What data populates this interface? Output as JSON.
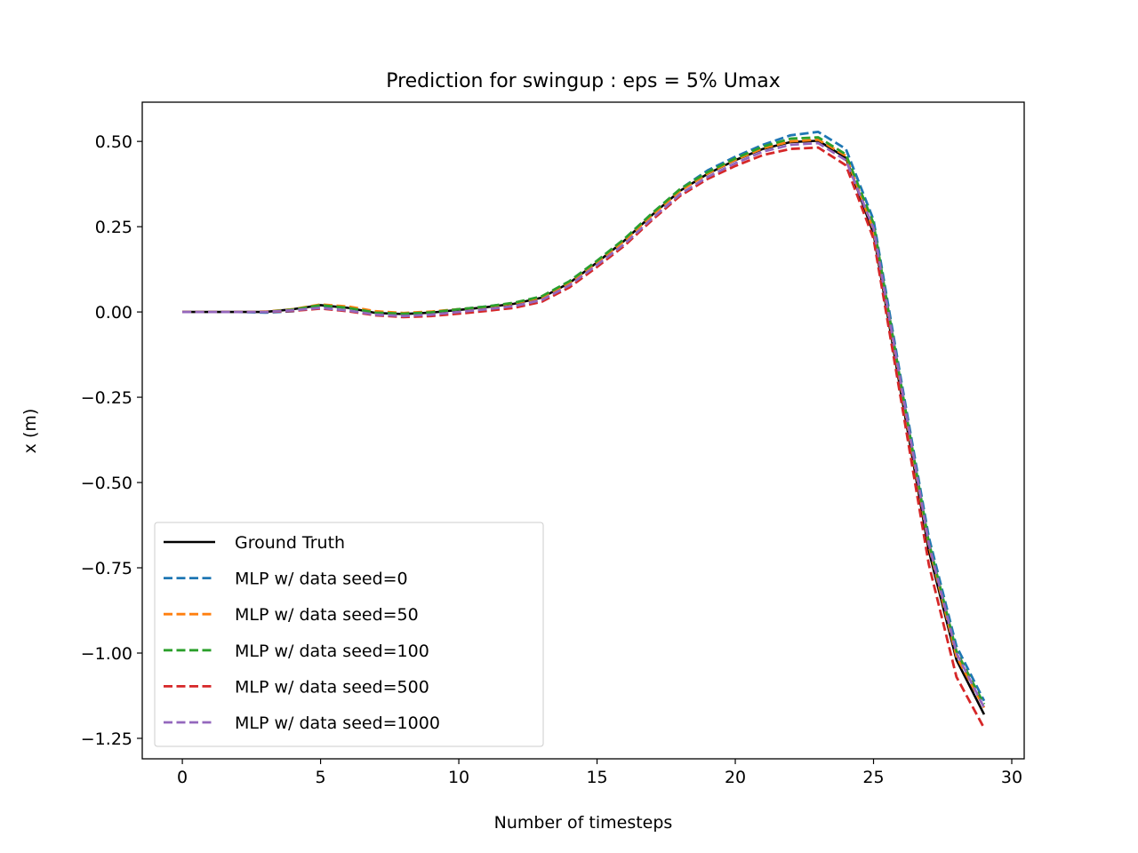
{
  "chart_data": {
    "type": "line",
    "title": "Prediction for swingup : eps = 5% Umax",
    "xlabel": "Number of timesteps",
    "ylabel": "x (m)",
    "xlim": [
      -1.45,
      30.45
    ],
    "ylim": [
      -1.31,
      0.615
    ],
    "xticks": [
      0,
      5,
      10,
      15,
      20,
      25,
      30
    ],
    "xtick_labels": [
      "0",
      "5",
      "10",
      "15",
      "20",
      "25",
      "30"
    ],
    "yticks": [
      0.5,
      0.25,
      0.0,
      -0.25,
      -0.5,
      -0.75,
      -1.0,
      -1.25
    ],
    "ytick_labels": [
      "0.50",
      "0.25",
      "0.00",
      "−0.25",
      "−0.50",
      "−0.75",
      "−1.00",
      "−1.25"
    ],
    "grid": false,
    "legend_position": "lower-left",
    "x": [
      0,
      1,
      2,
      3,
      4,
      5,
      6,
      7,
      8,
      9,
      10,
      11,
      12,
      13,
      14,
      15,
      16,
      17,
      18,
      19,
      20,
      21,
      22,
      23,
      24,
      25,
      26,
      27,
      28,
      29
    ],
    "series": [
      {
        "name": "Ground Truth",
        "color": "#000000",
        "dashed": false,
        "values": [
          0,
          0,
          0,
          0,
          0.008,
          0.02,
          0.012,
          -0.003,
          -0.006,
          -0.002,
          0.006,
          0.014,
          0.024,
          0.042,
          0.085,
          0.145,
          0.21,
          0.285,
          0.355,
          0.405,
          0.445,
          0.478,
          0.498,
          0.502,
          0.452,
          0.23,
          -0.24,
          -0.7,
          -1.02,
          -1.18
        ]
      },
      {
        "name": "MLP w/ data seed=0",
        "color": "#1f77b4",
        "dashed": true,
        "values": [
          0,
          0,
          0,
          -0.002,
          0.002,
          0.018,
          0.012,
          -0.002,
          -0.005,
          0,
          0.008,
          0.016,
          0.026,
          0.045,
          0.09,
          0.15,
          0.215,
          0.29,
          0.36,
          0.415,
          0.455,
          0.49,
          0.518,
          0.528,
          0.478,
          0.27,
          -0.2,
          -0.66,
          -0.98,
          -1.14
        ]
      },
      {
        "name": "MLP w/ data seed=50",
        "color": "#ff7f0e",
        "dashed": true,
        "values": [
          0,
          0,
          0,
          0.001,
          0.008,
          0.022,
          0.016,
          0.002,
          -0.003,
          0.001,
          0.008,
          0.015,
          0.025,
          0.043,
          0.086,
          0.146,
          0.21,
          0.285,
          0.355,
          0.406,
          0.446,
          0.48,
          0.5,
          0.505,
          0.458,
          0.24,
          -0.225,
          -0.685,
          -1.01,
          -1.16
        ]
      },
      {
        "name": "MLP w/ data seed=100",
        "color": "#2ca02c",
        "dashed": true,
        "values": [
          0,
          0,
          0,
          0,
          0.007,
          0.02,
          0.012,
          -0.002,
          -0.005,
          -0.001,
          0.008,
          0.016,
          0.027,
          0.046,
          0.09,
          0.15,
          0.215,
          0.29,
          0.36,
          0.41,
          0.45,
          0.485,
          0.508,
          0.512,
          0.462,
          0.26,
          -0.215,
          -0.675,
          -0.995,
          -1.15
        ]
      },
      {
        "name": "MLP w/ data seed=500",
        "color": "#d62728",
        "dashed": true,
        "values": [
          0,
          0,
          0,
          0,
          0.003,
          0.01,
          0.002,
          -0.01,
          -0.015,
          -0.012,
          -0.005,
          0.003,
          0.012,
          0.03,
          0.072,
          0.132,
          0.195,
          0.27,
          0.34,
          0.39,
          0.428,
          0.46,
          0.478,
          0.482,
          0.43,
          0.215,
          -0.26,
          -0.74,
          -1.07,
          -1.22
        ]
      },
      {
        "name": "MLP w/ data seed=1000",
        "color": "#9467bd",
        "dashed": true,
        "values": [
          0,
          0,
          0,
          0,
          0.005,
          0.012,
          0.004,
          -0.008,
          -0.012,
          -0.008,
          0,
          0.008,
          0.017,
          0.035,
          0.078,
          0.138,
          0.2,
          0.275,
          0.345,
          0.396,
          0.436,
          0.47,
          0.49,
          0.495,
          0.445,
          0.245,
          -0.215,
          -0.68,
          -1.0,
          -1.16
        ]
      }
    ]
  }
}
